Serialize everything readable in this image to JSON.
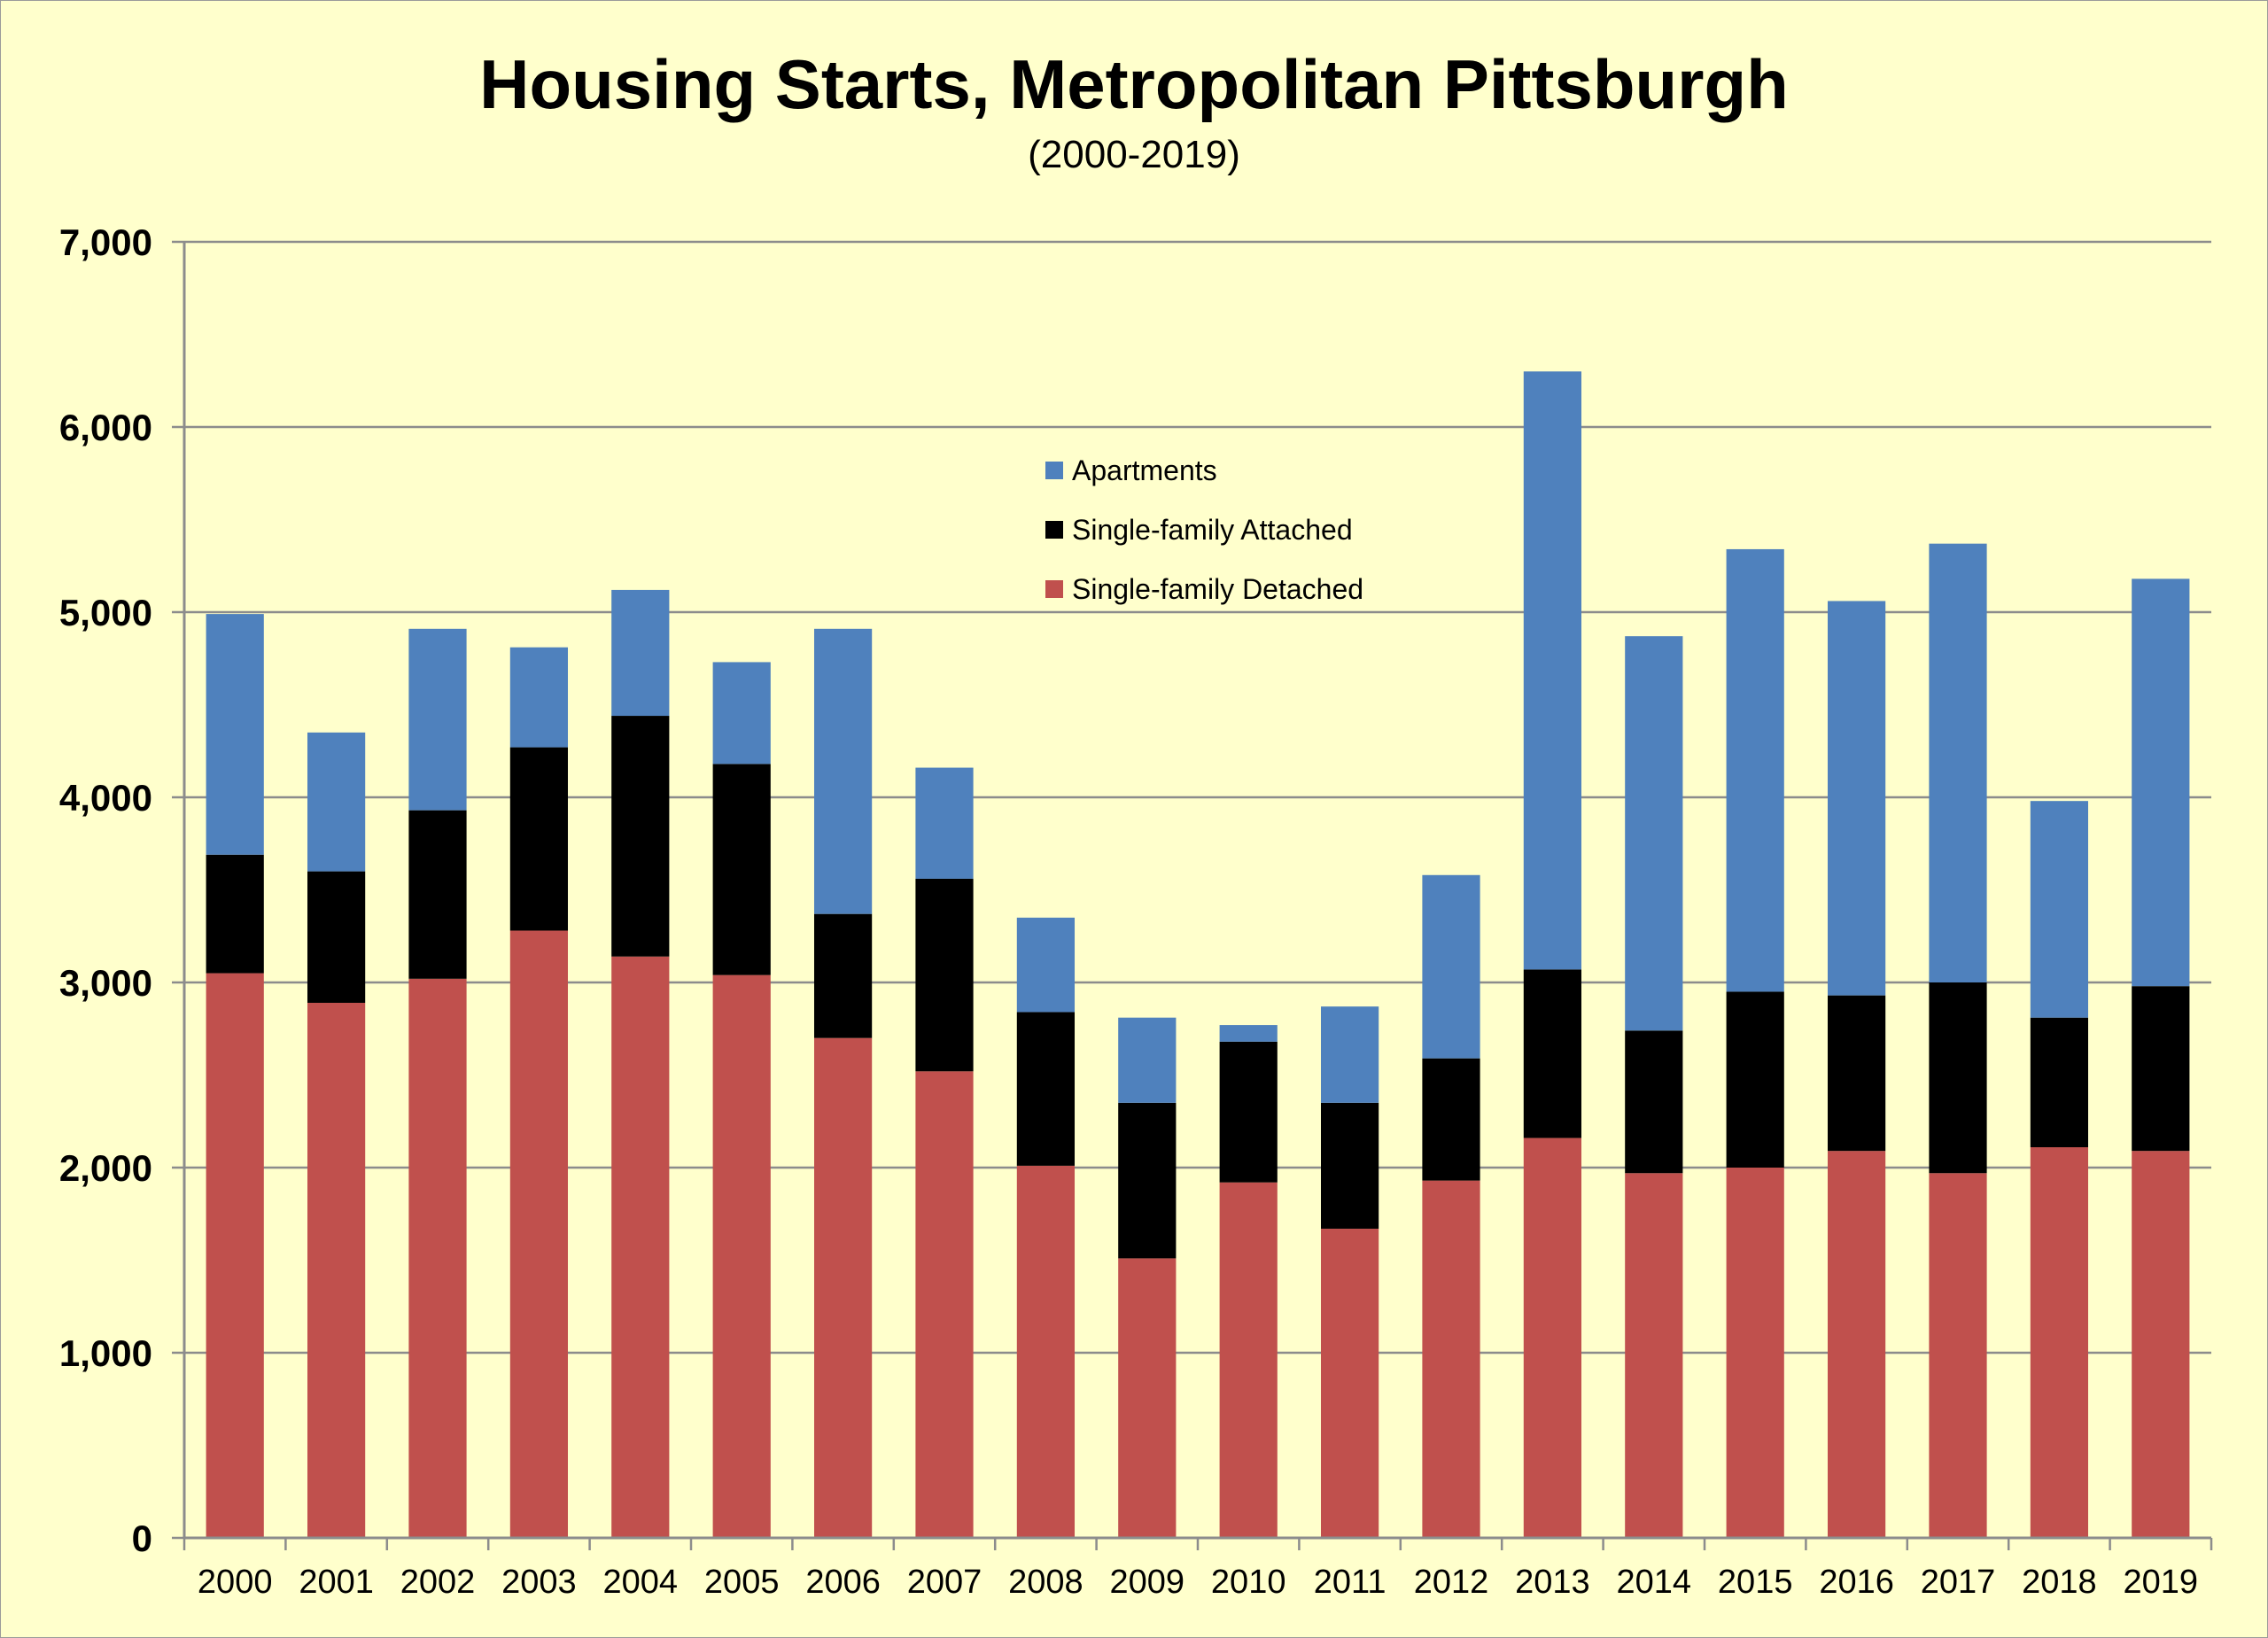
{
  "chart_data": {
    "type": "bar",
    "stacked": true,
    "title": "Housing Starts, Metropolitan Pittsburgh",
    "subtitle": "(2000-2019)",
    "xlabel": "",
    "ylabel": "",
    "ylim": [
      0,
      7000
    ],
    "yticks": [
      0,
      1000,
      2000,
      3000,
      4000,
      5000,
      6000,
      7000
    ],
    "ytick_labels": [
      "0",
      "1,000",
      "2,000",
      "3,000",
      "4,000",
      "5,000",
      "6,000",
      "7,000"
    ],
    "grid": true,
    "legend_position": "top-center",
    "categories": [
      "2000",
      "2001",
      "2002",
      "2003",
      "2004",
      "2005",
      "2006",
      "2007",
      "2008",
      "2009",
      "2010",
      "2011",
      "2012",
      "2013",
      "2014",
      "2015",
      "2016",
      "2017",
      "2018",
      "2019"
    ],
    "series": [
      {
        "name": "Single-family Detached",
        "color": "#c0504d",
        "values": [
          3050,
          2890,
          3020,
          3280,
          3140,
          3040,
          2700,
          2520,
          2010,
          1510,
          1920,
          1670,
          1930,
          2160,
          1970,
          2000,
          2090,
          1970,
          2110,
          2090
        ]
      },
      {
        "name": "Single-family Attached",
        "color": "#000000",
        "values": [
          640,
          710,
          910,
          990,
          1300,
          1140,
          670,
          1040,
          830,
          840,
          760,
          680,
          660,
          910,
          770,
          950,
          840,
          1030,
          700,
          890
        ]
      },
      {
        "name": "Apartments",
        "color": "#4f81bd",
        "values": [
          1300,
          750,
          980,
          540,
          680,
          550,
          1540,
          600,
          510,
          460,
          90,
          520,
          990,
          3230,
          2130,
          2390,
          2130,
          2370,
          1170,
          2200
        ]
      }
    ]
  }
}
